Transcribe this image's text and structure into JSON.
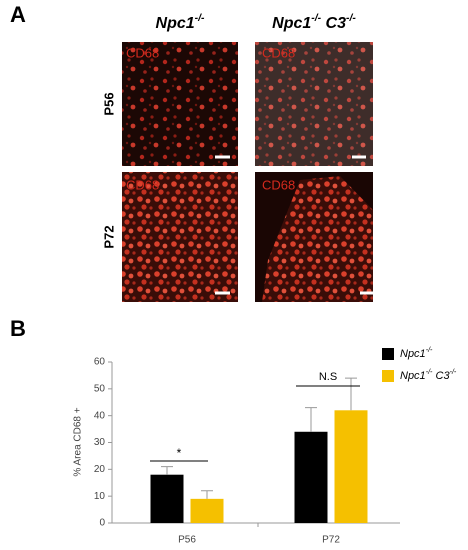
{
  "panel_a": {
    "label": "A",
    "columns": [
      "Npc1-/-",
      "Npc1-/- C3-/-"
    ],
    "rows": [
      "P56",
      "P72"
    ],
    "stain_labels": [
      "CD68",
      "CD68",
      "CD68",
      "CD68"
    ]
  },
  "panel_b": {
    "label": "B"
  },
  "chart_data": {
    "type": "bar",
    "y_label": "% Area CD68 +",
    "categories": [
      "P56",
      "P72"
    ],
    "series": [
      {
        "name": "Npc1-/-",
        "color": "#000000",
        "values": [
          18,
          34
        ],
        "errors": [
          3,
          9
        ]
      },
      {
        "name": "Npc1-/- C3-/-",
        "color": "#f5c000",
        "values": [
          9,
          42
        ],
        "errors": [
          3,
          12
        ]
      }
    ],
    "ylim": [
      0,
      60
    ],
    "yticks": [
      0,
      10,
      20,
      30,
      40,
      50,
      60
    ],
    "annotations": [
      "*",
      "N.S"
    ],
    "legend": "upper right"
  }
}
